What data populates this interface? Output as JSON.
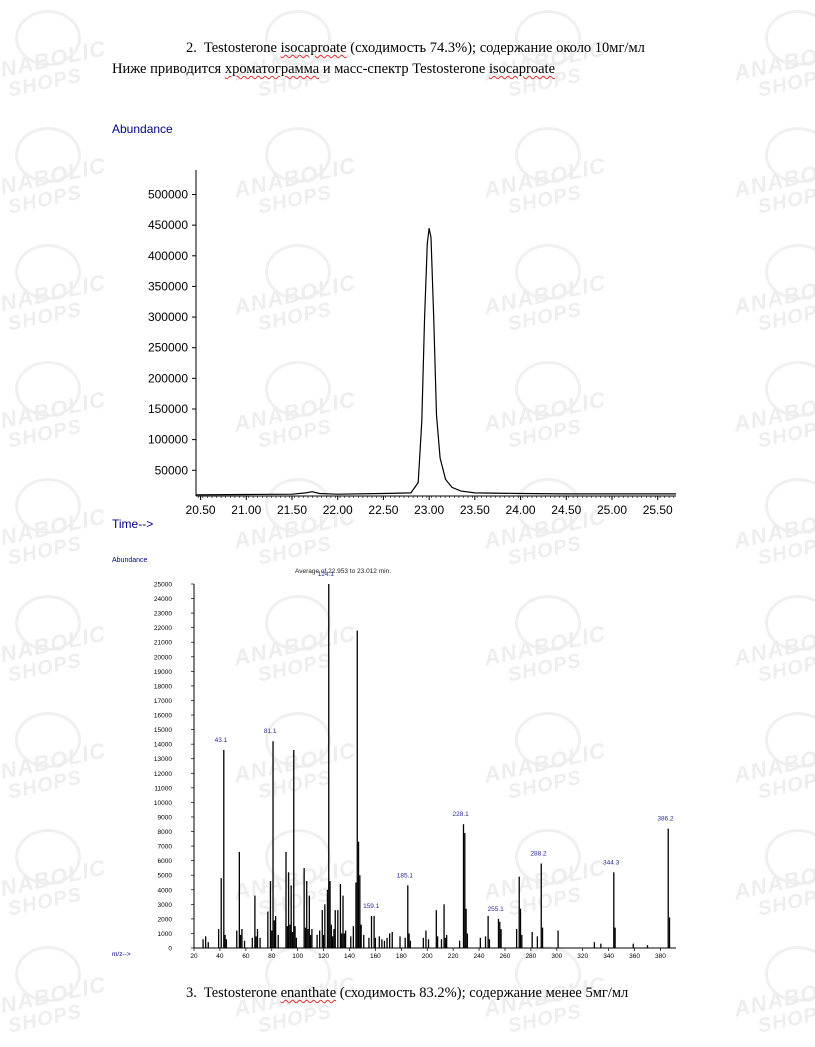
{
  "watermark": {
    "line1": "ANABOLIC",
    "line2": "SHOPS"
  },
  "section2": {
    "number": "2.",
    "name": "Testosterone",
    "compound": "isocaproate",
    "rest": "(сходимость 74.3%); содержание около 10мг/мл"
  },
  "intro": {
    "pre": "Ниже приводится",
    "word": "хроматограмма",
    "mid": "и масс-спектр Testosterone",
    "compound": "isocaproate"
  },
  "section3": {
    "number": "3.",
    "name": "Testosterone",
    "compound": "enanthate",
    "rest": "(сходимость 83.2%); содержание менее 5мг/мл"
  },
  "chart_data": [
    {
      "type": "line",
      "ylabel": "Abundance",
      "xlabel": "Time-->",
      "xlim": [
        20.45,
        25.7
      ],
      "ylim": [
        8000,
        540000
      ],
      "xticks": [
        "20.50",
        "21.00",
        "21.50",
        "22.00",
        "22.50",
        "23.00",
        "23.50",
        "24.00",
        "24.50",
        "25.00",
        "25.50"
      ],
      "yticks": [
        "50000",
        "100000",
        "150000",
        "200000",
        "250000",
        "300000",
        "350000",
        "400000",
        "450000",
        "500000"
      ],
      "series": [
        {
          "x": [
            20.45,
            21.0,
            21.5,
            21.65,
            21.72,
            21.8,
            22.0,
            22.5,
            22.8,
            22.88,
            22.92,
            22.95,
            22.98,
            23.0,
            23.02,
            23.05,
            23.08,
            23.12,
            23.18,
            23.25,
            23.35,
            23.5,
            24.0,
            24.5,
            25.0,
            25.7
          ],
          "y": [
            10000,
            10500,
            11000,
            13000,
            15000,
            12000,
            11000,
            12000,
            13000,
            30000,
            130000,
            300000,
            420000,
            445000,
            430000,
            300000,
            140000,
            70000,
            35000,
            22000,
            16000,
            13000,
            12000,
            11500,
            11500,
            11500
          ]
        }
      ],
      "grid": false
    },
    {
      "type": "bar",
      "subtitle": "Average of 22.953 to 23.012 min.",
      "ylabel": "Abundance",
      "xlabel": "m/z-->",
      "xlim": [
        20,
        392
      ],
      "ylim": [
        0,
        25000
      ],
      "xticks": [
        "20",
        "40",
        "60",
        "80",
        "100",
        "120",
        "140",
        "160",
        "180",
        "200",
        "220",
        "240",
        "260",
        "280",
        "300",
        "320",
        "340",
        "360",
        "380"
      ],
      "yticks": [
        "0",
        "1000",
        "2000",
        "3000",
        "4000",
        "5000",
        "6000",
        "7000",
        "8000",
        "9000",
        "10000",
        "11000",
        "12000",
        "13000",
        "14000",
        "15000",
        "16000",
        "17000",
        "18000",
        "19000",
        "20000",
        "21000",
        "22000",
        "23000",
        "24000",
        "25000"
      ],
      "peak_labels": [
        {
          "mz": 43.1,
          "label": "43.1"
        },
        {
          "mz": 81.1,
          "label": "81.1"
        },
        {
          "mz": 124.1,
          "label": "124.1"
        },
        {
          "mz": 159.1,
          "label": "159.1"
        },
        {
          "mz": 185.1,
          "label": "185.1"
        },
        {
          "mz": 228.1,
          "label": "228.1"
        },
        {
          "mz": 255.1,
          "label": "255.1"
        },
        {
          "mz": 288.2,
          "label": "288.2"
        },
        {
          "mz": 344.3,
          "label": "344.3"
        },
        {
          "mz": 386.2,
          "label": "386.2"
        }
      ],
      "peaks": [
        [
          27,
          600
        ],
        [
          29,
          800
        ],
        [
          31,
          400
        ],
        [
          39,
          1300
        ],
        [
          41,
          4800
        ],
        [
          43,
          13600
        ],
        [
          44,
          900
        ],
        [
          45,
          600
        ],
        [
          53,
          1200
        ],
        [
          55,
          6600
        ],
        [
          56,
          900
        ],
        [
          57,
          1300
        ],
        [
          59,
          500
        ],
        [
          65,
          700
        ],
        [
          67,
          3600
        ],
        [
          68,
          800
        ],
        [
          69,
          1300
        ],
        [
          71,
          700
        ],
        [
          77,
          2500
        ],
        [
          79,
          4600
        ],
        [
          80,
          1200
        ],
        [
          81,
          14200
        ],
        [
          82,
          1900
        ],
        [
          83,
          2200
        ],
        [
          85,
          900
        ],
        [
          91,
          6600
        ],
        [
          92,
          1500
        ],
        [
          93,
          5200
        ],
        [
          94,
          1600
        ],
        [
          95,
          4300
        ],
        [
          96,
          1100
        ],
        [
          97,
          13600
        ],
        [
          98,
          1500
        ],
        [
          99,
          700
        ],
        [
          105,
          5500
        ],
        [
          106,
          1400
        ],
        [
          107,
          4600
        ],
        [
          108,
          1300
        ],
        [
          109,
          3600
        ],
        [
          110,
          900
        ],
        [
          111,
          1300
        ],
        [
          115,
          900
        ],
        [
          117,
          1200
        ],
        [
          119,
          2600
        ],
        [
          120,
          900
        ],
        [
          121,
          3000
        ],
        [
          123,
          4000
        ],
        [
          124,
          25000
        ],
        [
          125,
          4600
        ],
        [
          126,
          1600
        ],
        [
          127,
          800
        ],
        [
          128,
          1300
        ],
        [
          129,
          2600
        ],
        [
          131,
          2600
        ],
        [
          133,
          4400
        ],
        [
          134,
          1000
        ],
        [
          135,
          3600
        ],
        [
          136,
          1000
        ],
        [
          137,
          1200
        ],
        [
          141,
          800
        ],
        [
          143,
          1500
        ],
        [
          145,
          4500
        ],
        [
          146,
          21800
        ],
        [
          147,
          7300
        ],
        [
          148,
          5000
        ],
        [
          149,
          1600
        ],
        [
          151,
          900
        ],
        [
          155,
          700
        ],
        [
          157,
          2200
        ],
        [
          159,
          2200
        ],
        [
          160,
          700
        ],
        [
          163,
          800
        ],
        [
          165,
          600
        ],
        [
          167,
          500
        ],
        [
          169,
          700
        ],
        [
          171,
          1000
        ],
        [
          173,
          1100
        ],
        [
          179,
          800
        ],
        [
          183,
          700
        ],
        [
          185,
          4300
        ],
        [
          186,
          1000
        ],
        [
          187,
          500
        ],
        [
          197,
          700
        ],
        [
          199,
          1200
        ],
        [
          201,
          600
        ],
        [
          207,
          2600
        ],
        [
          208,
          800
        ],
        [
          211,
          600
        ],
        [
          213,
          3000
        ],
        [
          214,
          700
        ],
        [
          215,
          900
        ],
        [
          225,
          500
        ],
        [
          228,
          8500
        ],
        [
          229,
          7900
        ],
        [
          230,
          2700
        ],
        [
          231,
          1000
        ],
        [
          241,
          700
        ],
        [
          245,
          800
        ],
        [
          247,
          2200
        ],
        [
          248,
          600
        ],
        [
          255,
          2000
        ],
        [
          256,
          1800
        ],
        [
          257,
          1300
        ],
        [
          269,
          1300
        ],
        [
          271,
          4900
        ],
        [
          272,
          2700
        ],
        [
          273,
          900
        ],
        [
          281,
          1100
        ],
        [
          285,
          800
        ],
        [
          288,
          5800
        ],
        [
          289,
          1400
        ],
        [
          301,
          1200
        ],
        [
          329,
          400
        ],
        [
          334,
          300
        ],
        [
          344,
          5200
        ],
        [
          345,
          1400
        ],
        [
          359,
          300
        ],
        [
          370,
          200
        ],
        [
          386,
          8200
        ],
        [
          387,
          2100
        ]
      ]
    }
  ]
}
